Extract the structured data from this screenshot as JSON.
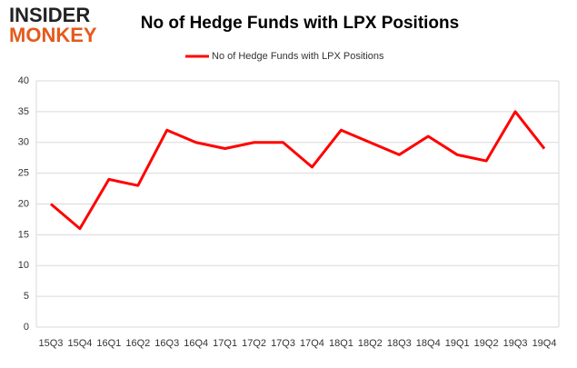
{
  "logo": {
    "line1": "INSIDER",
    "line2": "MONKEY"
  },
  "chart_data": {
    "type": "line",
    "title": "No of Hedge Funds with LPX Positions",
    "categories": [
      "15Q3",
      "15Q4",
      "16Q1",
      "16Q2",
      "16Q3",
      "16Q4",
      "17Q1",
      "17Q2",
      "17Q3",
      "17Q4",
      "18Q1",
      "18Q2",
      "18Q3",
      "18Q4",
      "19Q1",
      "19Q2",
      "19Q3",
      "19Q4"
    ],
    "series": [
      {
        "name": "No of Hedge Funds with LPX Positions",
        "color": "#ff0000",
        "values": [
          20,
          16,
          24,
          23,
          32,
          30,
          29,
          30,
          30,
          26,
          32,
          30,
          28,
          31,
          28,
          27,
          35,
          29
        ]
      }
    ],
    "ylim": [
      0,
      40
    ],
    "yticks": [
      0,
      5,
      10,
      15,
      20,
      25,
      30,
      35,
      40
    ],
    "grid": true,
    "legend": "top"
  }
}
